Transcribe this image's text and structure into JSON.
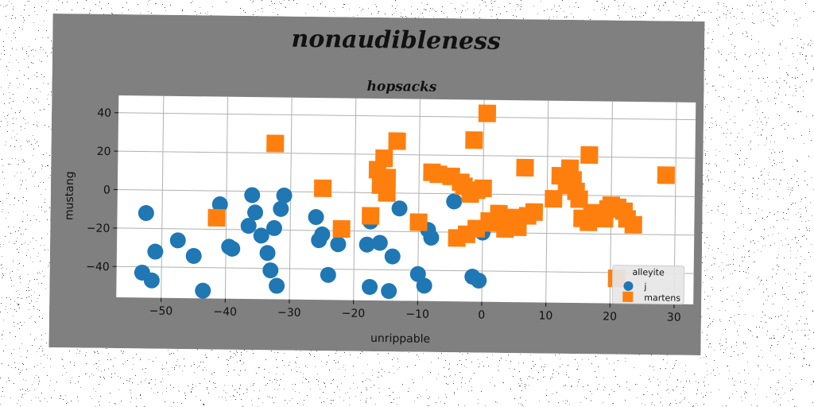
{
  "chart_data": {
    "type": "scatter",
    "title": "nonaudibleness",
    "subtitle": "hopsacks",
    "xlabel": "unrippable",
    "ylabel": "mustang",
    "xlim": [
      -57,
      33
    ],
    "ylim": [
      -56,
      49
    ],
    "xticks": [
      -50,
      -40,
      -30,
      -20,
      -10,
      0,
      10,
      20,
      30
    ],
    "yticks": [
      -40,
      -20,
      0,
      20,
      40
    ],
    "grid": true,
    "legend": {
      "title": "alleyite",
      "placement": "bottom-right"
    },
    "series": [
      {
        "name": "j",
        "marker": "circle",
        "color": "#1f77b4",
        "points": [
          [
            -52.5,
            -12
          ],
          [
            -51,
            -32
          ],
          [
            -53,
            -43
          ],
          [
            -51.5,
            -47
          ],
          [
            -47.5,
            -26
          ],
          [
            -45,
            -34
          ],
          [
            -43.5,
            -52
          ],
          [
            -41,
            -7
          ],
          [
            -39.5,
            -29
          ],
          [
            -39,
            -30
          ],
          [
            -36.5,
            -18
          ],
          [
            -36,
            -2
          ],
          [
            -35.5,
            -11
          ],
          [
            -34.5,
            -23
          ],
          [
            -33.5,
            -32
          ],
          [
            -33,
            -41
          ],
          [
            -32.5,
            -19
          ],
          [
            -32,
            -49
          ],
          [
            -31.5,
            -9
          ],
          [
            -31,
            -2
          ],
          [
            -26,
            -13
          ],
          [
            -25.5,
            -25
          ],
          [
            -25,
            -22
          ],
          [
            -24,
            -43
          ],
          [
            -22.5,
            -27
          ],
          [
            -18,
            -27
          ],
          [
            -17.5,
            -49
          ],
          [
            -17.5,
            -15
          ],
          [
            -16,
            -26
          ],
          [
            -14.5,
            -51
          ],
          [
            -14,
            -33
          ],
          [
            -13,
            -8
          ],
          [
            -10,
            -42
          ],
          [
            -9,
            -48
          ],
          [
            -8.5,
            -19
          ],
          [
            -8,
            -23
          ],
          [
            -4.5,
            -4
          ],
          [
            -1.5,
            -43
          ],
          [
            -0.5,
            -45
          ],
          [
            0,
            -20
          ]
        ]
      },
      {
        "name": "martens",
        "marker": "square",
        "color": "#ff7f0e",
        "points": [
          [
            -41.5,
            -14
          ],
          [
            -32.5,
            25
          ],
          [
            -25,
            2
          ],
          [
            -22,
            -19
          ],
          [
            -17.5,
            -12
          ],
          [
            -16.5,
            12
          ],
          [
            -16,
            4
          ],
          [
            -15.5,
            18
          ],
          [
            -15,
            8
          ],
          [
            -15,
            0
          ],
          [
            -13.5,
            27
          ],
          [
            -10,
            -15
          ],
          [
            -8,
            11
          ],
          [
            -7,
            10
          ],
          [
            -5,
            9
          ],
          [
            -3.5,
            6
          ],
          [
            -3,
            4
          ],
          [
            -4,
            -23
          ],
          [
            -2.5,
            -21
          ],
          [
            -2,
            0
          ],
          [
            -1.5,
            28
          ],
          [
            -1,
            2
          ],
          [
            -1,
            -18
          ],
          [
            0,
            3
          ],
          [
            0.5,
            42
          ],
          [
            1,
            -14
          ],
          [
            1.5,
            -15
          ],
          [
            2.5,
            -10
          ],
          [
            3.5,
            -18
          ],
          [
            4,
            -15
          ],
          [
            4.5,
            -12
          ],
          [
            5,
            -13
          ],
          [
            5.5,
            -17
          ],
          [
            6.5,
            14
          ],
          [
            7,
            -11
          ],
          [
            8,
            -9
          ],
          [
            11,
            -2
          ],
          [
            12,
            10
          ],
          [
            13,
            5
          ],
          [
            13.5,
            14
          ],
          [
            14,
            8
          ],
          [
            14.5,
            2
          ],
          [
            15,
            -2
          ],
          [
            15.5,
            -12
          ],
          [
            16.5,
            21
          ],
          [
            16.5,
            -14
          ],
          [
            17,
            -9
          ],
          [
            18,
            -11
          ],
          [
            19,
            -12
          ],
          [
            19.5,
            -7
          ],
          [
            20,
            -5
          ],
          [
            21,
            -6
          ],
          [
            22,
            -8
          ],
          [
            22.5,
            -12
          ],
          [
            23.5,
            -15
          ],
          [
            28.5,
            11
          ],
          [
            21,
            -43
          ]
        ]
      }
    ]
  }
}
